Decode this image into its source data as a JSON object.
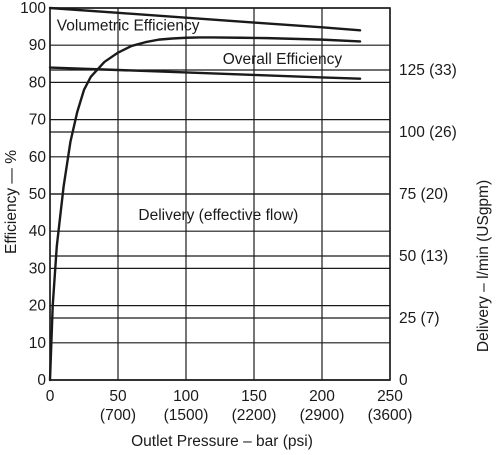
{
  "chart_data": {
    "type": "line",
    "title": "",
    "xlabel": "Outlet Pressure – bar (psi)",
    "ylabel": "Efficiency — %",
    "y2label": "Delivery – l/min (USgpm)",
    "xlim": [
      0,
      250
    ],
    "ylim": [
      0,
      100
    ],
    "y2lim": [
      0,
      150
    ],
    "grid": true,
    "x_ticks": [
      {
        "value": 0,
        "label": "0",
        "sublabel": ""
      },
      {
        "value": 50,
        "label": "50",
        "sublabel": "(700)"
      },
      {
        "value": 100,
        "label": "100",
        "sublabel": "(1500)"
      },
      {
        "value": 150,
        "label": "150",
        "sublabel": "(2200)"
      },
      {
        "value": 200,
        "label": "200",
        "sublabel": "(2900)"
      },
      {
        "value": 250,
        "label": "250",
        "sublabel": "(3600)"
      }
    ],
    "y_ticks": [
      {
        "value": 0,
        "label": "0"
      },
      {
        "value": 10,
        "label": "10"
      },
      {
        "value": 20,
        "label": "20"
      },
      {
        "value": 30,
        "label": "30"
      },
      {
        "value": 40,
        "label": "40"
      },
      {
        "value": 50,
        "label": "50"
      },
      {
        "value": 60,
        "label": "60"
      },
      {
        "value": 70,
        "label": "70"
      },
      {
        "value": 80,
        "label": "80"
      },
      {
        "value": 90,
        "label": "90"
      },
      {
        "value": 100,
        "label": "100"
      }
    ],
    "y2_ticks": [
      {
        "value": 0,
        "label": "0"
      },
      {
        "value": 25,
        "label": "25 (7)"
      },
      {
        "value": 50,
        "label": "50 (13)"
      },
      {
        "value": 75,
        "label": "75 (20)"
      },
      {
        "value": 100,
        "label": "100 (26)"
      },
      {
        "value": 125,
        "label": "125 (33)"
      }
    ],
    "series": [
      {
        "name": "Volumetric Efficiency",
        "axis": "left",
        "x": [
          0,
          50,
          100,
          150,
          200,
          228
        ],
        "values": [
          100,
          98.7,
          97.4,
          96.1,
          94.8,
          94.0
        ]
      },
      {
        "name": "Overall Efficiency",
        "axis": "left",
        "x": [
          0,
          2,
          5,
          10,
          15,
          20,
          25,
          30,
          40,
          50,
          60,
          70,
          80,
          90,
          100,
          110,
          120,
          140,
          160,
          180,
          200,
          228
        ],
        "values": [
          0,
          20,
          36,
          52,
          64,
          72,
          78,
          81.5,
          85.5,
          88,
          89.8,
          90.8,
          91.5,
          91.8,
          92,
          92.1,
          92.1,
          92,
          91.9,
          91.7,
          91.5,
          91
        ]
      },
      {
        "name": "Delivery (effective flow)",
        "axis": "right",
        "x": [
          0,
          50,
          100,
          150,
          200,
          228
        ],
        "values": [
          126,
          125,
          124,
          123,
          122,
          121.5
        ]
      }
    ],
    "annotations": [
      {
        "text": "Volumetric Efficiency",
        "x": 5,
        "y": 94
      },
      {
        "text": "Overall Efficiency",
        "x": 127,
        "y": 85
      },
      {
        "text": "Delivery (effective flow)",
        "x": 65,
        "y": 43
      }
    ]
  }
}
